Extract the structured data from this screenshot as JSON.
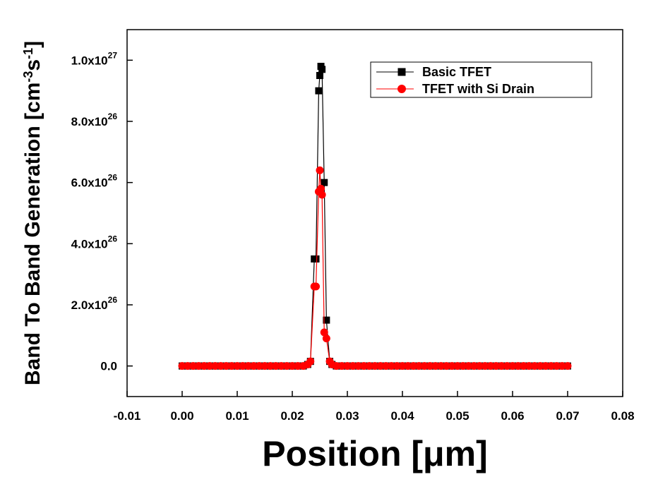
{
  "chart_data": {
    "type": "line",
    "title": "",
    "xlabel": "Position [μm]",
    "ylabel": "Band To Band Generation [cm",
    "ylabel_unit_exp1": "-3",
    "ylabel_unit_mid": "s",
    "ylabel_unit_exp2": "-1",
    "ylabel_unit_close": "]",
    "xlim": [
      -0.01,
      0.08
    ],
    "ylim": [
      -1e+26,
      1.1e+27
    ],
    "x_ticks": [
      {
        "value": -0.01,
        "label": "-0.01"
      },
      {
        "value": 0.0,
        "label": "0.00"
      },
      {
        "value": 0.01,
        "label": "0.01"
      },
      {
        "value": 0.02,
        "label": "0.02"
      },
      {
        "value": 0.03,
        "label": "0.03"
      },
      {
        "value": 0.04,
        "label": "0.04"
      },
      {
        "value": 0.05,
        "label": "0.05"
      },
      {
        "value": 0.06,
        "label": "0.06"
      },
      {
        "value": 0.07,
        "label": "0.07"
      },
      {
        "value": 0.08,
        "label": "0.08"
      }
    ],
    "y_ticks": [
      {
        "value": 0,
        "base": "0.0",
        "exp": ""
      },
      {
        "value": 2e+26,
        "base": "2.0x10",
        "exp": "26"
      },
      {
        "value": 4e+26,
        "base": "4.0x10",
        "exp": "26"
      },
      {
        "value": 6e+26,
        "base": "6.0x10",
        "exp": "26"
      },
      {
        "value": 8e+26,
        "base": "8.0x10",
        "exp": "26"
      },
      {
        "value": 1e+27,
        "base": "1.0x10",
        "exp": "27"
      }
    ],
    "legend_position": "top-right",
    "grid": false,
    "series": [
      {
        "name": "Basic TFET",
        "color": "#000000",
        "marker": "square",
        "x": [
          0,
          0.001,
          0.002,
          0.003,
          0.004,
          0.005,
          0.006,
          0.007,
          0.008,
          0.009,
          0.01,
          0.011,
          0.012,
          0.013,
          0.014,
          0.015,
          0.016,
          0.017,
          0.018,
          0.019,
          0.02,
          0.021,
          0.022,
          0.0228,
          0.0233,
          0.024,
          0.0243,
          0.0248,
          0.025,
          0.0252,
          0.0254,
          0.0258,
          0.0262,
          0.0268,
          0.0272,
          0.028,
          0.029,
          0.03,
          0.031,
          0.032,
          0.033,
          0.034,
          0.035,
          0.036,
          0.037,
          0.038,
          0.039,
          0.04,
          0.041,
          0.042,
          0.043,
          0.044,
          0.045,
          0.046,
          0.047,
          0.048,
          0.049,
          0.05,
          0.051,
          0.052,
          0.053,
          0.054,
          0.055,
          0.056,
          0.057,
          0.058,
          0.059,
          0.06,
          0.061,
          0.062,
          0.063,
          0.064,
          0.065,
          0.066,
          0.067,
          0.068,
          0.069,
          0.07
        ],
        "y": [
          0,
          0,
          0,
          0,
          0,
          0,
          0,
          0,
          0,
          0,
          0,
          0,
          0,
          0,
          0,
          0,
          0,
          0,
          0,
          0,
          0,
          0,
          0,
          5e+24,
          1.5e+25,
          3.5e+26,
          3.5e+26,
          9e+26,
          9.5e+26,
          9.8e+26,
          9.7e+26,
          6e+26,
          1.5e+26,
          1.5e+25,
          5e+24,
          0,
          0,
          0,
          0,
          0,
          0,
          0,
          0,
          0,
          0,
          0,
          0,
          0,
          0,
          0,
          0,
          0,
          0,
          0,
          0,
          0,
          0,
          0,
          0,
          0,
          0,
          0,
          0,
          0,
          0,
          0,
          0,
          0,
          0,
          0,
          0,
          0,
          0,
          0,
          0,
          0,
          0,
          0
        ]
      },
      {
        "name": "TFET with Si Drain",
        "color": "#ff0000",
        "marker": "circle",
        "x": [
          0,
          0.001,
          0.002,
          0.003,
          0.004,
          0.005,
          0.006,
          0.007,
          0.008,
          0.009,
          0.01,
          0.011,
          0.012,
          0.013,
          0.014,
          0.015,
          0.016,
          0.017,
          0.018,
          0.019,
          0.02,
          0.021,
          0.022,
          0.0228,
          0.0233,
          0.024,
          0.0243,
          0.0248,
          0.025,
          0.0252,
          0.0254,
          0.0258,
          0.0262,
          0.0268,
          0.0272,
          0.028,
          0.029,
          0.03,
          0.031,
          0.032,
          0.033,
          0.034,
          0.035,
          0.036,
          0.037,
          0.038,
          0.039,
          0.04,
          0.041,
          0.042,
          0.043,
          0.044,
          0.045,
          0.046,
          0.047,
          0.048,
          0.049,
          0.05,
          0.051,
          0.052,
          0.053,
          0.054,
          0.055,
          0.056,
          0.057,
          0.058,
          0.059,
          0.06,
          0.061,
          0.062,
          0.063,
          0.064,
          0.065,
          0.066,
          0.067,
          0.068,
          0.069,
          0.07
        ],
        "y": [
          0,
          0,
          0,
          0,
          0,
          0,
          0,
          0,
          0,
          0,
          0,
          0,
          0,
          0,
          0,
          0,
          0,
          0,
          0,
          0,
          0,
          0,
          0,
          5e+24,
          1.5e+25,
          2.6e+26,
          2.6e+26,
          5.7e+26,
          6.4e+26,
          5.8e+26,
          5.6e+26,
          1.1e+26,
          9e+25,
          1.5e+25,
          5e+24,
          0,
          0,
          0,
          0,
          0,
          0,
          0,
          0,
          0,
          0,
          0,
          0,
          0,
          0,
          0,
          0,
          0,
          0,
          0,
          0,
          0,
          0,
          0,
          0,
          0,
          0,
          0,
          0,
          0,
          0,
          0,
          0,
          0,
          0,
          0,
          0,
          0,
          0,
          0,
          0,
          0,
          0,
          0
        ]
      }
    ]
  }
}
